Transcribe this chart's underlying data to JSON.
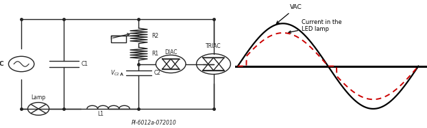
{
  "background_color": "#ffffff",
  "circuit_label": "PI-6012a-072010",
  "vac_label": "VAC",
  "led_label": "Current in the\nLED lamp",
  "wave_color_vac": "#000000",
  "wave_color_led": "#cc0000",
  "text_color": "#000000",
  "col": "#222222",
  "figure_width": 6.23,
  "figure_height": 1.87,
  "lw": 1.0
}
